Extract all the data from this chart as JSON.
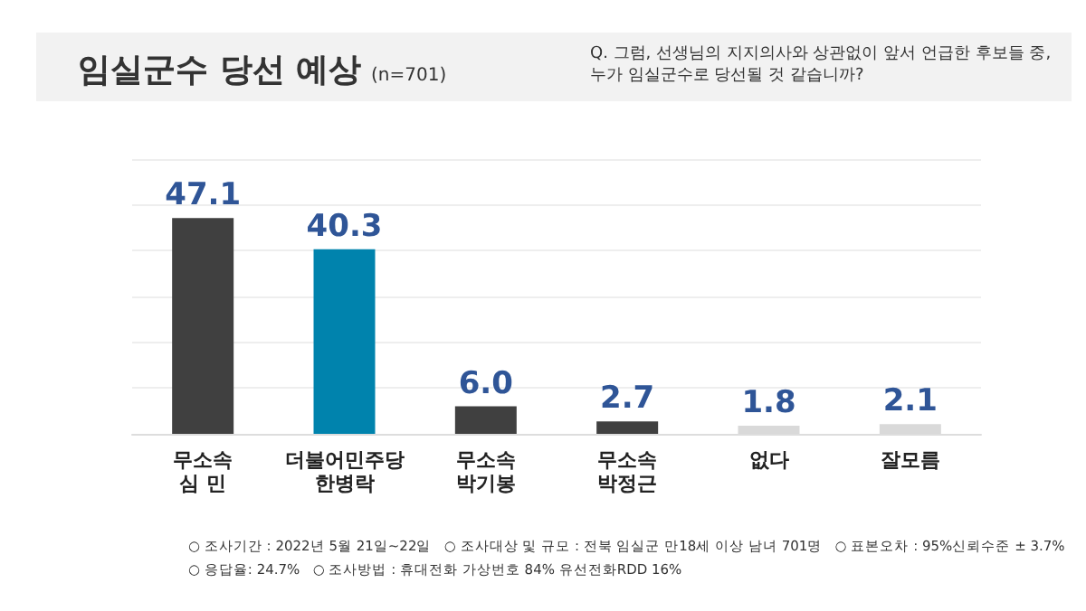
{
  "chart_data": {
    "type": "bar",
    "title": "임실군수 당선 예상",
    "subtitle": "(n=701)",
    "annotations": [
      "Q. 그럼, 선생님의 지지의사와 상관없이 앞서 언급한 후보들 중,\n누가 임실군수로 당선될 것 같습니까?",
      "○ 조사기간 : 2022년 5월 21일~22일   ○ 조사대상 및 규모 : 전북 임실군 만18세 이상 남녀 701명   ○ 표본오차 : 95%신뢰수준 ± 3.7%",
      "○ 응답율: 24.7%   ○ 조사방법 : 휴대전화 가상번호 84% 유선전화RDD 16%"
    ],
    "categories": [
      "무소속\n심 민",
      "더불어민주당\n한병락",
      "무소속\n박기봉",
      "무소속\n박정근",
      "없다",
      "잘모름"
    ],
    "values": [
      47.1,
      40.3,
      6.0,
      2.7,
      1.8,
      2.1
    ],
    "colors": [
      "#404040",
      "#0083ad",
      "#404040",
      "#404040",
      "#d9d9d9",
      "#d9d9d9"
    ],
    "ylim": [
      0,
      60
    ],
    "yticks": [
      0,
      10,
      20,
      30,
      40,
      50,
      60
    ],
    "value_labels": [
      "47.1",
      "40.3",
      "6.0",
      "2.7",
      "1.8",
      "2.1"
    ],
    "tick_labels": "x",
    "grid": "y"
  }
}
